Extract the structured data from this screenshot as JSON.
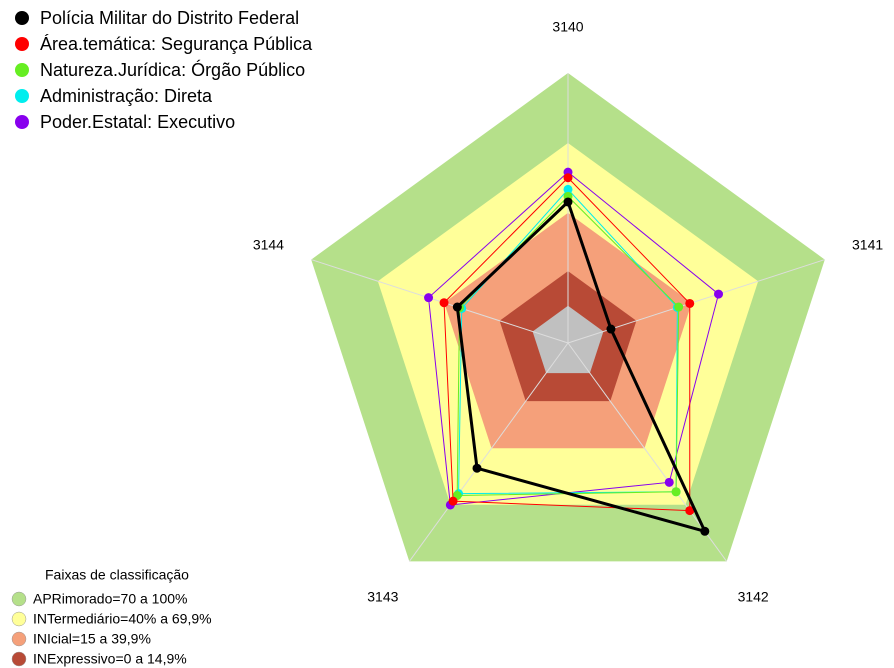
{
  "chart_data": {
    "type": "radar",
    "categories": [
      "3140",
      "3141",
      "3142",
      "3143",
      "3144"
    ],
    "rlim": [
      -16,
      100
    ],
    "series": [
      {
        "name": "Polícia Militar do Distrito Federal",
        "color": "#000000",
        "values": [
          44.6,
          3.4,
          84,
          50.5,
          34
        ]
      },
      {
        "name": "Área.temática: Segurança Pública",
        "color": "#ff0000",
        "values": [
          55,
          39,
          73,
          68,
          40
        ]
      },
      {
        "name": "Natureza.Jurídica: Órgão Público",
        "color": "#66ee22",
        "values": [
          47,
          34,
          63,
          65,
          33
        ]
      },
      {
        "name": "Administração: Direta",
        "color": "#00eeee",
        "values": [
          50,
          33.4,
          63,
          64,
          32
        ]
      },
      {
        "name": "Poder.Estatal: Executivo",
        "color": "#8800ee",
        "values": [
          57.4,
          52,
          58,
          70,
          47
        ]
      }
    ],
    "bands_title": "Faixas de classificação",
    "bands": [
      {
        "label": "APRimorado=70 a 100%",
        "from": 70,
        "to": 100,
        "color": "#b5e08a"
      },
      {
        "label": "INTermediário=40% a 69,9%",
        "from": 40,
        "to": 69.9,
        "color": "#ffff99"
      },
      {
        "label": "INIcial=15 a 39,9%",
        "from": 15,
        "to": 39.9,
        "color": "#f5a07a"
      },
      {
        "label": "INExpressivo=0 a 14,9%",
        "from": 0,
        "to": 14.9,
        "color": "#b84a36"
      }
    ]
  }
}
